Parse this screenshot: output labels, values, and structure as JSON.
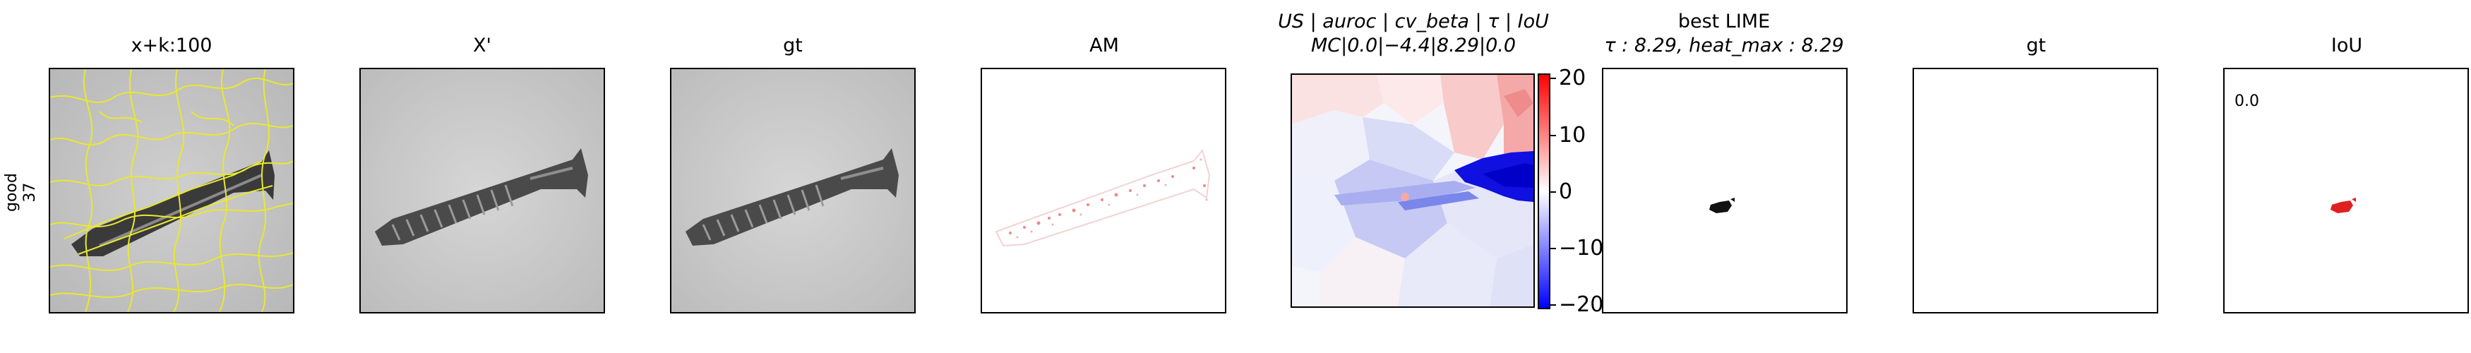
{
  "row_label": {
    "line1": "good",
    "line2": "37"
  },
  "panels": [
    {
      "title": "x+k:100"
    },
    {
      "title": "X'"
    },
    {
      "title": "gt"
    },
    {
      "title": "AM"
    },
    {
      "title_line1": "US | auroc | cv_beta | τ | IoU",
      "title_line2": "MC|0.0|−4.4|8.29|0.0"
    },
    {
      "title_line1": "best LIME",
      "title_line2": "τ : 8.29, heat_max : 8.29"
    },
    {
      "title": "gt"
    },
    {
      "title": "IoU",
      "annotation": "0.0"
    }
  ],
  "colorbar": {
    "ticks": [
      "20",
      "10",
      "0",
      "−10",
      "−20"
    ],
    "colors": {
      "max": "#ff0000",
      "mid": "#ffffff",
      "min": "#0000ff"
    }
  },
  "colors": {
    "superpixel_edges": "#e8e830",
    "iou_overlay": "#e02020"
  }
}
